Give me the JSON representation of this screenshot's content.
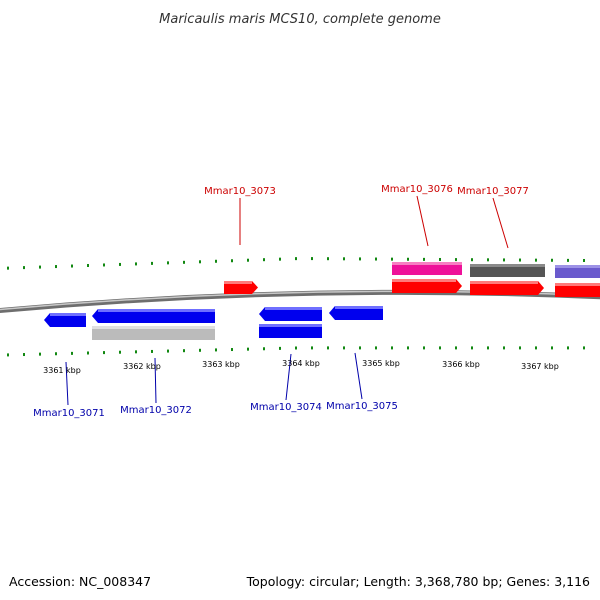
{
  "title": "Maricaulis maris MCS10, complete genome",
  "footer": {
    "accession": "Accession: NC_008347",
    "summary": "Topology: circular; Length: 3,368,780 bp; Genes: 3,116"
  },
  "colors": {
    "forward_label": "#cc0000",
    "reverse_label": "#0000aa",
    "red": "#ff0000",
    "blue": "#0000ee",
    "magenta": "#ee1199",
    "dark_gray": "#555555",
    "light_gray": "#bbbbbb",
    "purple": "#6a5acd",
    "tick": "#118811",
    "backbone": "#888888"
  },
  "ticks": {
    "major_labels": [
      "3361 kbp",
      "3362 kbp",
      "3363 kbp",
      "3364 kbp",
      "3365 kbp",
      "3366 kbp",
      "3367 kbp"
    ]
  },
  "genes": [
    {
      "label": "Mmar10_3073",
      "strand": "+",
      "color": "red"
    },
    {
      "label": "Mmar10_3076",
      "strand": "+",
      "color": "red"
    },
    {
      "label": "Mmar10_3077",
      "strand": "+",
      "color": "red"
    },
    {
      "label": "Mmar10_3071",
      "strand": "-",
      "color": "blue"
    },
    {
      "label": "Mmar10_3072",
      "strand": "-",
      "color": "blue"
    },
    {
      "label": "Mmar10_3074",
      "strand": "-",
      "color": "blue"
    },
    {
      "label": "Mmar10_3075",
      "strand": "-",
      "color": "blue"
    }
  ]
}
